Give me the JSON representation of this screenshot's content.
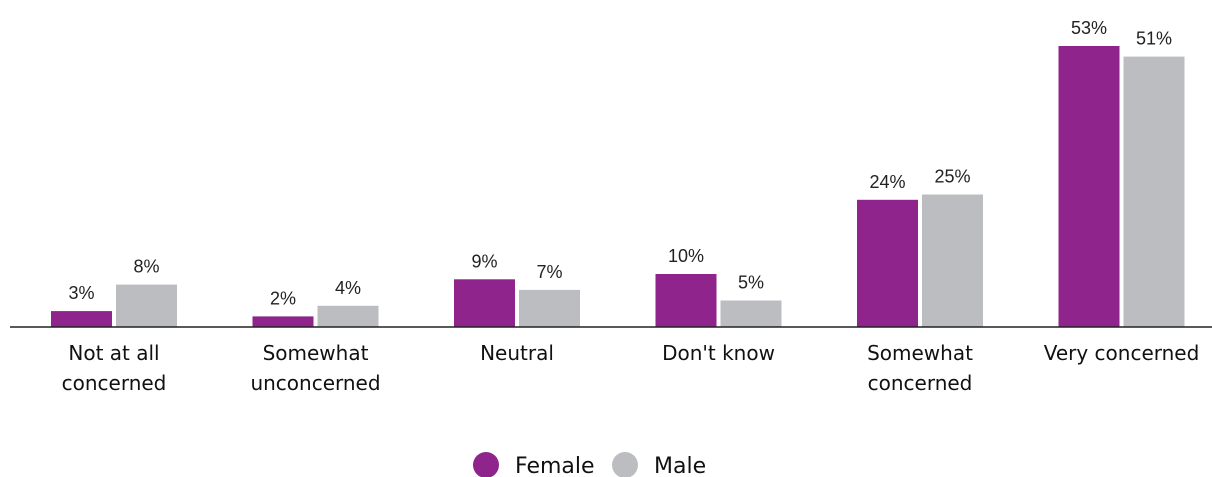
{
  "chart_data": {
    "type": "bar",
    "title": "",
    "xlabel": "",
    "ylabel": "",
    "ylim": [
      0,
      55
    ],
    "grid": false,
    "legend_position": "bottom-center",
    "value_suffix": "%",
    "categories": [
      [
        "Not at all",
        "concerned"
      ],
      [
        "Somewhat",
        "unconcerned"
      ],
      [
        "Neutral"
      ],
      [
        "Don't know"
      ],
      [
        "Somewhat",
        "concerned"
      ],
      [
        "Very concerned"
      ]
    ],
    "series": [
      {
        "name": "Female",
        "color": "#8e248c",
        "values": [
          3,
          2,
          9,
          10,
          24,
          53
        ]
      },
      {
        "name": "Male",
        "color": "#bcbdc0",
        "values": [
          8,
          4,
          7,
          5,
          25,
          51
        ]
      }
    ]
  }
}
